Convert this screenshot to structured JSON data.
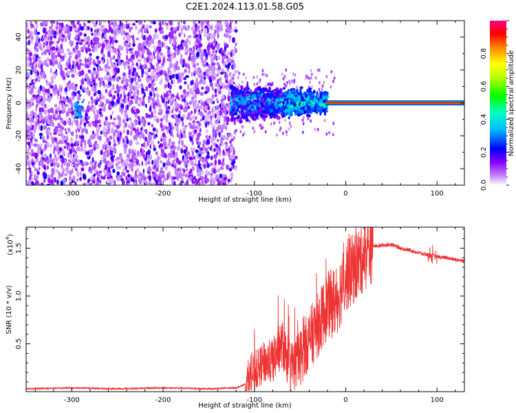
{
  "title": "C2E1.2024.113.01.58.G05",
  "chart_data": [
    {
      "type": "heatmap",
      "xlabel": "Height of straight line (km)",
      "ylabel": "Frequency (Hz)",
      "xlim": [
        -350,
        130
      ],
      "ylim": [
        -50,
        50
      ],
      "x_ticks": [
        "-300",
        "-200",
        "-100",
        "0",
        "100"
      ],
      "x_tick_values": [
        -300,
        -200,
        -100,
        0,
        100
      ],
      "y_ticks": [
        "-40",
        "-20",
        "0",
        "20",
        "40"
      ],
      "y_tick_values": [
        -40,
        -20,
        0,
        20,
        40
      ],
      "colorbar": {
        "label": "Normalized spectral amplitude",
        "range": [
          0,
          1
        ],
        "ticks": [
          "0.0",
          "0.2",
          "0.4",
          "0.6",
          "0.8"
        ],
        "tick_values": [
          0.0,
          0.2,
          0.4,
          0.6,
          0.8
        ],
        "colormap": [
          "#ffffff",
          "#8a00ff",
          "#0000ff",
          "#00e0ff",
          "#00ff00",
          "#ffff00",
          "#ff0000",
          "#ff0080"
        ]
      },
      "regions": [
        {
          "x_range": [
            -350,
            -120
          ],
          "f_range": [
            -50,
            50
          ],
          "amplitude": [
            0.0,
            0.2
          ],
          "description_kind": "diffuse noise"
        },
        {
          "x_range": [
            -120,
            -20
          ],
          "f_range": [
            -10,
            10
          ],
          "amplitude": [
            0.1,
            0.5
          ]
        },
        {
          "x_range": [
            -20,
            130
          ],
          "f_range": [
            -1,
            1
          ],
          "amplitude": [
            0.8,
            1.0
          ]
        }
      ]
    },
    {
      "type": "line",
      "xlabel": "Height of straight line (km)",
      "ylabel": "SNR (10 * v/v)",
      "scale_label": "(x10",
      "scale_exp": "4",
      "scale_close": ")",
      "xlim": [
        -350,
        130
      ],
      "ylim": [
        0,
        1.72
      ],
      "x_ticks": [
        "-300",
        "-200",
        "-100",
        "0",
        "100"
      ],
      "x_tick_values": [
        -300,
        -200,
        -100,
        0,
        100
      ],
      "y_ticks": [
        "0.5",
        "1.0",
        "1.5"
      ],
      "y_tick_values": [
        0.5,
        1.0,
        1.5
      ],
      "color": "#ee3333",
      "series": [
        {
          "x": [
            -350,
            -300,
            -250,
            -200,
            -150,
            -120,
            -110,
            -100,
            -90,
            -80,
            -70,
            -60,
            -50,
            -40,
            -30,
            -20,
            -10,
            0,
            10,
            20,
            30,
            40,
            50,
            60,
            70,
            80,
            90,
            100,
            110,
            120,
            130
          ],
          "y": [
            0.03,
            0.04,
            0.03,
            0.04,
            0.03,
            0.04,
            0.08,
            0.2,
            0.3,
            0.32,
            0.5,
            0.25,
            0.35,
            0.55,
            0.7,
            0.9,
            0.95,
            1.2,
            1.3,
            1.42,
            1.52,
            1.53,
            1.54,
            1.5,
            1.48,
            1.45,
            1.43,
            1.41,
            1.4,
            1.38,
            1.37
          ]
        }
      ]
    }
  ]
}
